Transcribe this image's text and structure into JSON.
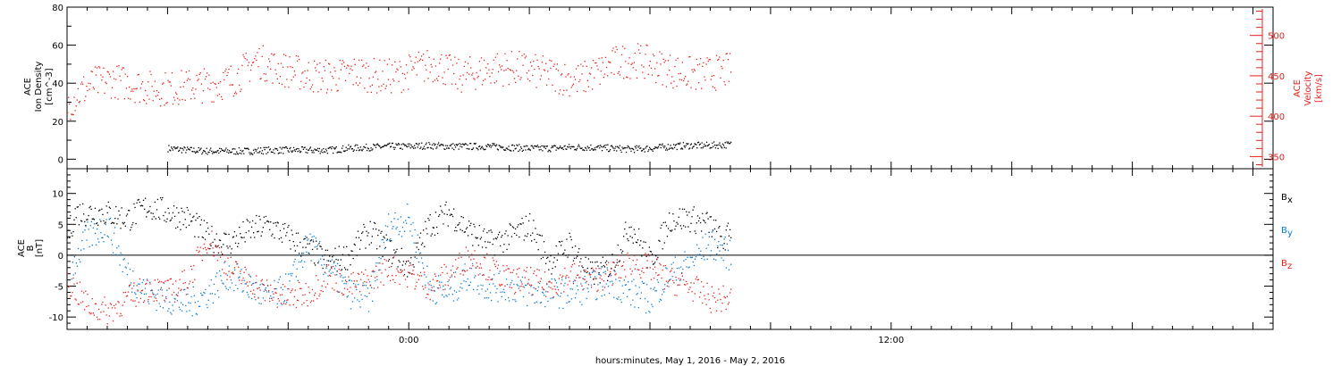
{
  "chart_data": [
    {
      "type": "scatter",
      "panel": "top",
      "ylabel_lines": [
        "ACE",
        "Ion Density",
        "[cm^-3]"
      ],
      "y_ticks": [
        "0",
        "20",
        "40",
        "60",
        "80"
      ],
      "ylim": [
        -5,
        80
      ],
      "y2label_lines": [
        "ACE",
        "Velocity",
        "[km/s]"
      ],
      "y2_ticks": [
        "350",
        "400",
        "450",
        "500"
      ],
      "y2lim": [
        335,
        535
      ],
      "series": [
        {
          "axis": "left",
          "color": "#000000",
          "points": [
            [
              -12,
              6
            ],
            [
              -11,
              5
            ],
            [
              -10,
              4.5
            ],
            [
              -9,
              4.5
            ],
            [
              -8,
              4.5
            ],
            [
              -7,
              5
            ],
            [
              -6,
              5
            ],
            [
              -5,
              5
            ],
            [
              -4,
              5
            ],
            [
              -3,
              6
            ],
            [
              -2,
              6.5
            ],
            [
              -1,
              7
            ],
            [
              0,
              7
            ],
            [
              1,
              7.5
            ],
            [
              2,
              7
            ],
            [
              3,
              7
            ],
            [
              4,
              7
            ],
            [
              5,
              6.5
            ],
            [
              6,
              6
            ],
            [
              7,
              6
            ],
            [
              8,
              6.5
            ],
            [
              9,
              6.5
            ],
            [
              10,
              6
            ],
            [
              11,
              5.5
            ],
            [
              12,
              6
            ],
            [
              13,
              7
            ],
            [
              14,
              7.5
            ],
            [
              15,
              7.5
            ],
            [
              16,
              8
            ]
          ],
          "spread": 1.8
        },
        {
          "axis": "right",
          "color": "#e8201c",
          "points": [
            [
              -17,
              415
            ],
            [
              -16.4,
              430
            ],
            [
              -15.8,
              440
            ],
            [
              -14.8,
              445
            ],
            [
              -13.8,
              440
            ],
            [
              -12.8,
              435
            ],
            [
              -11.8,
              435
            ],
            [
              -10.8,
              438
            ],
            [
              -9.8,
              440
            ],
            [
              -8.8,
              445
            ],
            [
              -7.6,
              470
            ],
            [
              -6.6,
              460
            ],
            [
              -5.6,
              455
            ],
            [
              -4.6,
              450
            ],
            [
              -3.6,
              450
            ],
            [
              -2.6,
              455
            ],
            [
              -1.6,
              450
            ],
            [
              -0.6,
              450
            ],
            [
              0.4,
              460
            ],
            [
              1.4,
              465
            ],
            [
              2.4,
              450
            ],
            [
              3.4,
              455
            ],
            [
              4.4,
              460
            ],
            [
              5.4,
              460
            ],
            [
              6.4,
              455
            ],
            [
              7.4,
              450
            ],
            [
              8.4,
              445
            ],
            [
              9.4,
              455
            ],
            [
              10.4,
              468
            ],
            [
              11.4,
              470
            ],
            [
              12.4,
              462
            ],
            [
              13.4,
              455
            ],
            [
              14.4,
              452
            ],
            [
              15.4,
              455
            ],
            [
              16,
              458
            ]
          ],
          "spread": 22
        }
      ]
    },
    {
      "type": "scatter",
      "panel": "bottom",
      "ylabel_lines": [
        "ACE",
        "B",
        "[nT]"
      ],
      "y_ticks": [
        "-10",
        "-5",
        "0",
        "5",
        "10"
      ],
      "ylim": [
        -12,
        14
      ],
      "zero_line": 0,
      "legend": [
        {
          "text": "B",
          "sub": "x",
          "color": "#000000"
        },
        {
          "text": "B",
          "sub": "y",
          "color": "#0a7dd6"
        },
        {
          "text": "B",
          "sub": "z",
          "color": "#e8201c"
        }
      ],
      "series": [
        {
          "name": "Bx",
          "color": "#000000",
          "points": [
            [
              -17,
              3
            ],
            [
              -16.6,
              7
            ],
            [
              -15.2,
              7
            ],
            [
              -14,
              6
            ],
            [
              -13,
              8
            ],
            [
              -12,
              7
            ],
            [
              -11,
              6
            ],
            [
              -10,
              3
            ],
            [
              -9,
              2
            ],
            [
              -8,
              4
            ],
            [
              -7,
              5
            ],
            [
              -6,
              3
            ],
            [
              -5,
              1
            ],
            [
              -4,
              -1
            ],
            [
              -3,
              0
            ],
            [
              -2,
              4
            ],
            [
              -1,
              1
            ],
            [
              0,
              -2
            ],
            [
              1,
              5
            ],
            [
              2,
              7
            ],
            [
              3,
              4
            ],
            [
              4,
              2
            ],
            [
              5,
              3
            ],
            [
              6,
              5
            ],
            [
              7,
              -1
            ],
            [
              8,
              2
            ],
            [
              9,
              -3
            ],
            [
              10,
              -2
            ],
            [
              11,
              5
            ],
            [
              12,
              -1
            ],
            [
              13,
              6
            ],
            [
              14,
              6
            ],
            [
              15,
              5
            ],
            [
              15.6,
              2
            ],
            [
              16,
              4
            ]
          ],
          "spread": 2.2
        },
        {
          "name": "By",
          "color": "#0a7dd6",
          "points": [
            [
              -16.8,
              -2
            ],
            [
              -16,
              3
            ],
            [
              -15,
              5
            ],
            [
              -14,
              -3
            ],
            [
              -13,
              -6
            ],
            [
              -12,
              -7
            ],
            [
              -11,
              -8
            ],
            [
              -10,
              -6
            ],
            [
              -9,
              -3
            ],
            [
              -8,
              -5
            ],
            [
              -7,
              -7
            ],
            [
              -6,
              -5
            ],
            [
              -5,
              2
            ],
            [
              -4,
              -2
            ],
            [
              -3,
              -6
            ],
            [
              -2,
              -7
            ],
            [
              -1,
              5
            ],
            [
              0,
              6
            ],
            [
              1,
              -5
            ],
            [
              2,
              -6
            ],
            [
              3,
              -3
            ],
            [
              4,
              -5
            ],
            [
              5,
              -5
            ],
            [
              6,
              -6
            ],
            [
              7,
              -6
            ],
            [
              8,
              -6
            ],
            [
              9,
              -5
            ],
            [
              10,
              -4
            ],
            [
              11,
              -6
            ],
            [
              12,
              -7
            ],
            [
              13,
              -3
            ],
            [
              14,
              -1
            ],
            [
              15,
              2
            ],
            [
              16,
              0
            ]
          ],
          "spread": 2.5
        },
        {
          "name": "Bz",
          "color": "#e8201c",
          "points": [
            [
              -17,
              -4
            ],
            [
              -16,
              -8
            ],
            [
              -15,
              -9
            ],
            [
              -14,
              -7
            ],
            [
              -13,
              -5
            ],
            [
              -12,
              -6
            ],
            [
              -11,
              -4
            ],
            [
              -10,
              3
            ],
            [
              -9,
              -2
            ],
            [
              -8,
              -4
            ],
            [
              -7,
              -6
            ],
            [
              -6,
              -7
            ],
            [
              -5,
              -6
            ],
            [
              -4,
              -3
            ],
            [
              -3,
              -5
            ],
            [
              -2,
              -4
            ],
            [
              -1,
              -2
            ],
            [
              0,
              -3
            ],
            [
              1,
              -5
            ],
            [
              2,
              -3
            ],
            [
              3,
              0
            ],
            [
              4,
              -2
            ],
            [
              5,
              -4
            ],
            [
              6,
              -4
            ],
            [
              7,
              -5
            ],
            [
              8,
              -3
            ],
            [
              9,
              -4
            ],
            [
              10,
              -3
            ],
            [
              11,
              -1
            ],
            [
              12,
              -2
            ],
            [
              13,
              -4
            ],
            [
              14,
              -5
            ],
            [
              15,
              -7
            ],
            [
              16,
              -7
            ]
          ],
          "spread": 2.2
        }
      ]
    }
  ],
  "x_axis": {
    "xlim": [
      -17,
      43
    ],
    "major_ticks": [
      {
        "x": 0,
        "label": "0:00"
      },
      {
        "x": 24,
        "label": "12:00"
      }
    ],
    "xlabel": "hours:minutes, May  1, 2016 - May  2, 2016"
  },
  "colors": {
    "density": "#000000",
    "velocity": "#e8201c",
    "bx": "#000000",
    "by": "#0a7dd6",
    "bz": "#e8201c",
    "axis": "#000000"
  }
}
